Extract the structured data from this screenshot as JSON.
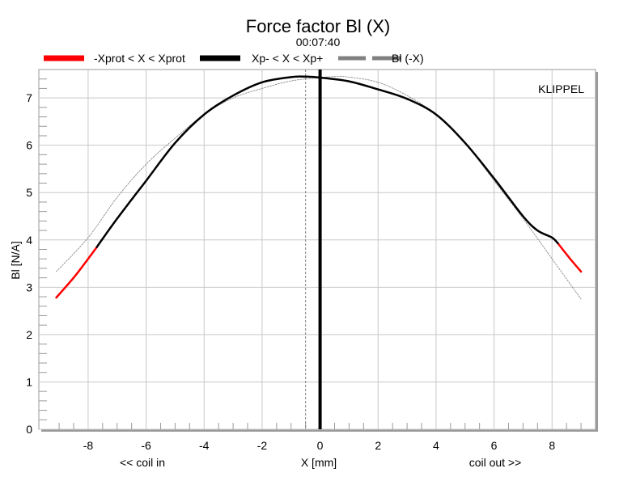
{
  "chart_data": {
    "type": "line",
    "title": "Force factor Bl (X)",
    "subtitle": "00:07:40",
    "xlabel": "X [mm]",
    "ylabel": "Bl [N/A]",
    "x_annotation_left": "<< coil in",
    "x_annotation_right": "coil out >>",
    "watermark": "KLIPPEL",
    "xlim": [
      -9.7,
      9.5
    ],
    "ylim": [
      0,
      7.6
    ],
    "x_ticks": [
      -8,
      -6,
      -4,
      -2,
      0,
      2,
      4,
      6,
      8
    ],
    "x_tick_labels": [
      "-8",
      "-6",
      "-4",
      "-2",
      "0",
      "2",
      "4",
      "6",
      "8"
    ],
    "y_ticks": [
      0,
      1,
      2,
      3,
      4,
      5,
      6,
      7
    ],
    "y_tick_labels": [
      "0",
      "1",
      "2",
      "3",
      "4",
      "5",
      "6",
      "7"
    ],
    "grid": true,
    "legend_position": "top",
    "legend": [
      {
        "label": "-Xprot < X < Xprot",
        "color": "#ff0000",
        "style": "solid"
      },
      {
        "label": "Xp- < X < Xp+",
        "color": "#000000",
        "style": "solid"
      },
      {
        "label": "Bl (-X)",
        "color": "#808080",
        "style": "dashed"
      }
    ],
    "x": [
      -9.1,
      -8.5,
      -8.0,
      -7.7,
      -7.0,
      -6.0,
      -5.0,
      -4.0,
      -3.0,
      -2.0,
      -1.0,
      -0.5,
      0.0,
      1.0,
      2.0,
      3.0,
      4.0,
      5.0,
      6.0,
      7.0,
      7.5,
      8.0,
      8.2,
      8.6,
      9.0
    ],
    "series": [
      {
        "name": "-Xprot < X < Xprot",
        "color": "#ff0000",
        "x": [
          -9.1,
          -8.5,
          -8.0,
          -7.7
        ],
        "values": [
          2.78,
          3.2,
          3.6,
          3.85
        ]
      },
      {
        "name": "-Xprot < X < Xprot",
        "color": "#ff0000",
        "x": [
          8.2,
          8.6,
          9.0
        ],
        "values": [
          3.93,
          3.62,
          3.33
        ]
      },
      {
        "name": "Xp- < X < Xp+",
        "color": "#000000",
        "x": [
          -7.7,
          -7.0,
          -6.0,
          -5.0,
          -4.0,
          -3.0,
          -2.0,
          -1.0,
          -0.5,
          0.0,
          1.0,
          2.0,
          3.0,
          4.0,
          5.0,
          6.0,
          7.0,
          7.5,
          8.0,
          8.2
        ],
        "values": [
          3.85,
          4.45,
          5.25,
          6.05,
          6.65,
          7.05,
          7.33,
          7.44,
          7.45,
          7.43,
          7.35,
          7.18,
          6.98,
          6.65,
          6.05,
          5.3,
          4.5,
          4.2,
          4.05,
          3.93
        ]
      },
      {
        "name": "Bl (-X)",
        "color": "#808080",
        "x": [
          -9.1,
          -8.0,
          -7.0,
          -6.0,
          -5.0,
          -4.0,
          -3.0,
          -2.0,
          -1.0,
          0.0,
          0.5,
          1.0,
          2.0,
          3.0,
          4.0,
          5.0,
          6.0,
          7.0,
          8.0,
          9.0
        ],
        "values": [
          3.33,
          4.05,
          4.9,
          5.6,
          6.15,
          6.65,
          7.0,
          7.2,
          7.36,
          7.43,
          7.45,
          7.44,
          7.33,
          7.05,
          6.65,
          6.05,
          5.25,
          4.45,
          3.6,
          2.75
        ]
      }
    ],
    "vertical_lines": [
      {
        "x": 0,
        "color": "#000000",
        "style": "solid",
        "weight": "thick"
      },
      {
        "x": -0.5,
        "color": "#808080",
        "style": "dashed",
        "weight": "thin"
      }
    ]
  }
}
